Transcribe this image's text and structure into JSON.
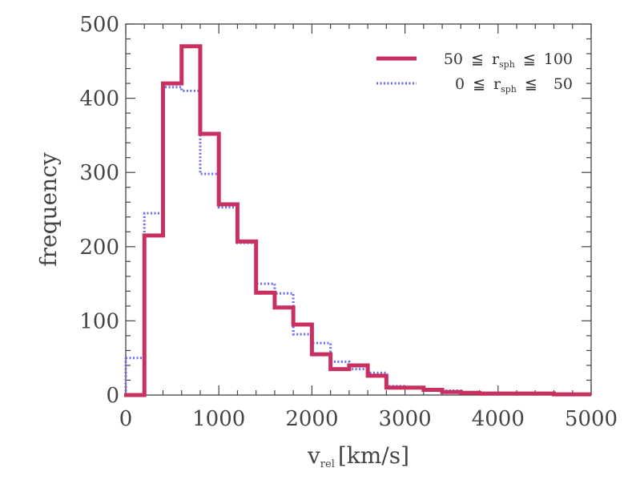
{
  "chart_data": {
    "type": "histogram",
    "xlabel_main": "v",
    "xlabel_sub": "rel",
    "xlabel_unit": "[km/s]",
    "ylabel": "frequency",
    "xlim": [
      0,
      5000
    ],
    "ylim": [
      0,
      500
    ],
    "xticks": [
      0,
      1000,
      2000,
      3000,
      4000,
      5000
    ],
    "yticks": [
      0,
      100,
      200,
      300,
      400,
      500
    ],
    "bin_edges": [
      0,
      200,
      400,
      600,
      800,
      1000,
      1200,
      1400,
      1600,
      1800,
      2000,
      2200,
      2400,
      2600,
      2800,
      3000,
      3200,
      3400,
      3600,
      3800,
      4000,
      4200,
      4400,
      4600,
      4800,
      5000
    ],
    "grid": false,
    "legend_position": "top-right",
    "series": [
      {
        "label_left": "50",
        "label_var": "r",
        "label_sub": "sph",
        "label_right": "100",
        "color": "#c8305f",
        "style": "solid",
        "values": [
          0,
          215,
          420,
          470,
          352,
          257,
          207,
          138,
          118,
          95,
          55,
          35,
          40,
          26,
          10,
          10,
          7,
          4,
          3,
          2,
          2,
          2,
          2,
          1,
          1
        ]
      },
      {
        "label_left": "0",
        "label_var": "r",
        "label_sub": "sph",
        "label_right": "50",
        "color": "#6b6bf0",
        "style": "dotted",
        "values": [
          50,
          245,
          415,
          410,
          298,
          253,
          205,
          150,
          137,
          82,
          70,
          45,
          35,
          30,
          12,
          10,
          8,
          6,
          4,
          3,
          2,
          2,
          2,
          2,
          1
        ]
      }
    ]
  }
}
